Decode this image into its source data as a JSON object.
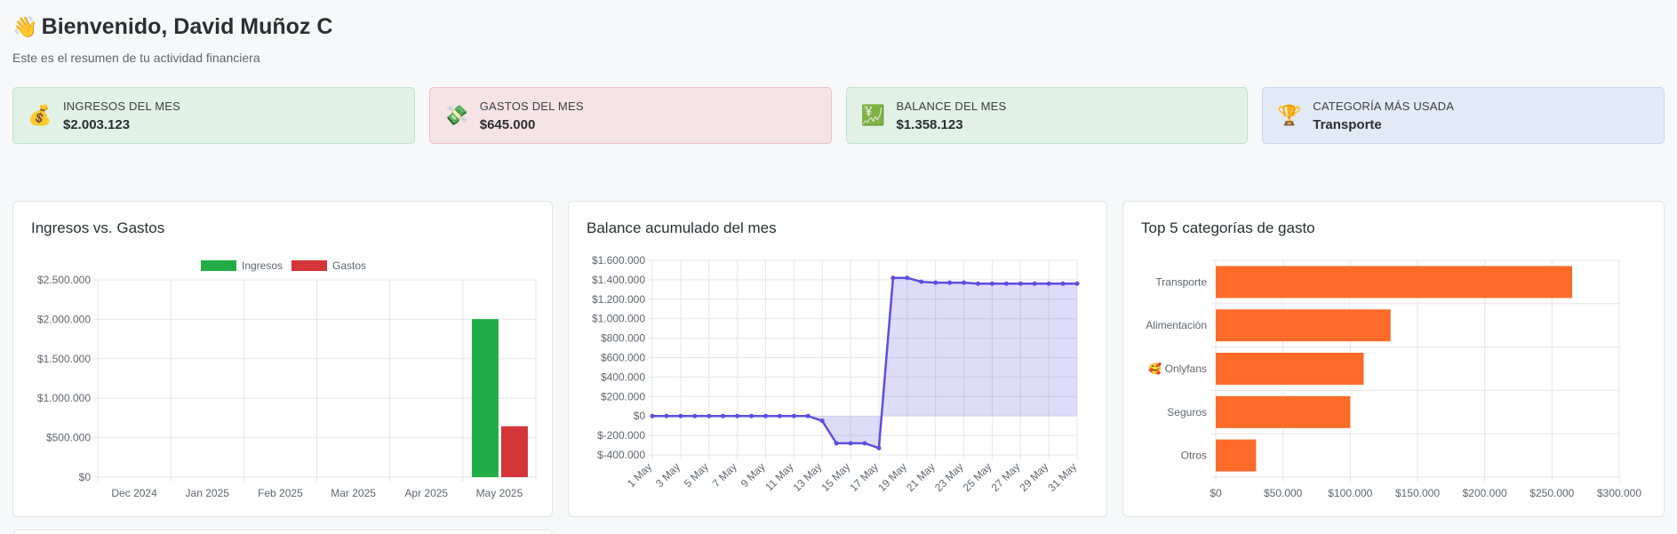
{
  "header": {
    "wave_icon": "👋",
    "title": "Bienvenido, David Muñoz C",
    "subtitle": "Este es el resumen de tu actividad financiera"
  },
  "stats": [
    {
      "icon": "💰",
      "icon_name": "money-bag-icon",
      "label": "INGRESOS DEL MES",
      "value": "$2.003.123",
      "color": "#e1f1e6"
    },
    {
      "icon": "💸",
      "icon_name": "money-wings-icon",
      "label": "GASTOS DEL MES",
      "value": "$645.000",
      "color": "#f6e3e5"
    },
    {
      "icon": "💹",
      "icon_name": "chart-increasing-icon",
      "label": "BALANCE DEL MES",
      "value": "$1.358.123",
      "color": "#e1f1e6"
    },
    {
      "icon": "🏆",
      "icon_name": "trophy-icon",
      "label": "CATEGORÍA MÁS USADA",
      "value": "Transporte",
      "color": "#e2ebf5"
    }
  ],
  "cards": {
    "income_vs_expenses": "Ingresos vs. Gastos",
    "balance": "Balance acumulado del mes",
    "top5": "Top 5 categorías de gasto"
  },
  "colors": {
    "ingresos": "#22ad48",
    "gastos": "#d33539",
    "balance_line": "#5b4fe0",
    "category_bar": "#fd6b2b"
  },
  "chart_data": [
    {
      "type": "bar",
      "title": "Ingresos vs. Gastos",
      "categories": [
        "Dec 2024",
        "Jan 2025",
        "Feb 2025",
        "Mar 2025",
        "Apr 2025",
        "May 2025"
      ],
      "series": [
        {
          "name": "Ingresos",
          "values": [
            0,
            0,
            0,
            0,
            0,
            2003123
          ]
        },
        {
          "name": "Gastos",
          "values": [
            0,
            0,
            0,
            0,
            0,
            645000
          ]
        }
      ],
      "ylim": [
        0,
        2500000
      ],
      "yticks": [
        "$2.500.000",
        "$2.000.000",
        "$1.500.000",
        "$1.000.000",
        "$500.000",
        "$0"
      ],
      "legend": "top",
      "grid": true
    },
    {
      "type": "area",
      "title": "Balance acumulado del mes",
      "x": [
        "1 May",
        "2 May",
        "3 May",
        "4 May",
        "5 May",
        "6 May",
        "7 May",
        "8 May",
        "9 May",
        "10 May",
        "11 May",
        "12 May",
        "13 May",
        "14 May",
        "15 May",
        "16 May",
        "17 May",
        "18 May",
        "19 May",
        "20 May",
        "21 May",
        "22 May",
        "23 May",
        "24 May",
        "25 May",
        "26 May",
        "27 May",
        "28 May",
        "29 May",
        "30 May",
        "31 May"
      ],
      "xticks": [
        "1 May",
        "3 May",
        "5 May",
        "7 May",
        "9 May",
        "11 May",
        "13 May",
        "15 May",
        "17 May",
        "19 May",
        "21 May",
        "23 May",
        "25 May",
        "27 May",
        "29 May",
        "31 May"
      ],
      "values": [
        0,
        0,
        0,
        0,
        0,
        0,
        0,
        0,
        0,
        0,
        0,
        0,
        -50000,
        -280000,
        -280000,
        -280000,
        -330000,
        1420000,
        1420000,
        1380000,
        1370000,
        1370000,
        1370000,
        1360000,
        1360000,
        1360000,
        1360000,
        1360000,
        1360000,
        1360000,
        1360000
      ],
      "ylim": [
        -400000,
        1600000
      ],
      "yticks": [
        "$1.600.000",
        "$1.400.000",
        "$1.200.000",
        "$1.000.000",
        "$800.000",
        "$600.000",
        "$400.000",
        "$200.000",
        "$0",
        "$-200.000",
        "$-400.000"
      ],
      "grid": true
    },
    {
      "type": "bar",
      "orientation": "horizontal",
      "title": "Top 5 categorías de gasto",
      "categories": [
        "Transporte",
        "Alimentación",
        "🥰 Onlyfans",
        "Seguros",
        "Otros"
      ],
      "values": [
        265000,
        130000,
        110000,
        100000,
        30000
      ],
      "xlim": [
        0,
        300000
      ],
      "xticks": [
        "$0",
        "$50.000",
        "$100.000",
        "$150.000",
        "$200.000",
        "$250.000",
        "$300.000"
      ],
      "grid": true
    }
  ]
}
